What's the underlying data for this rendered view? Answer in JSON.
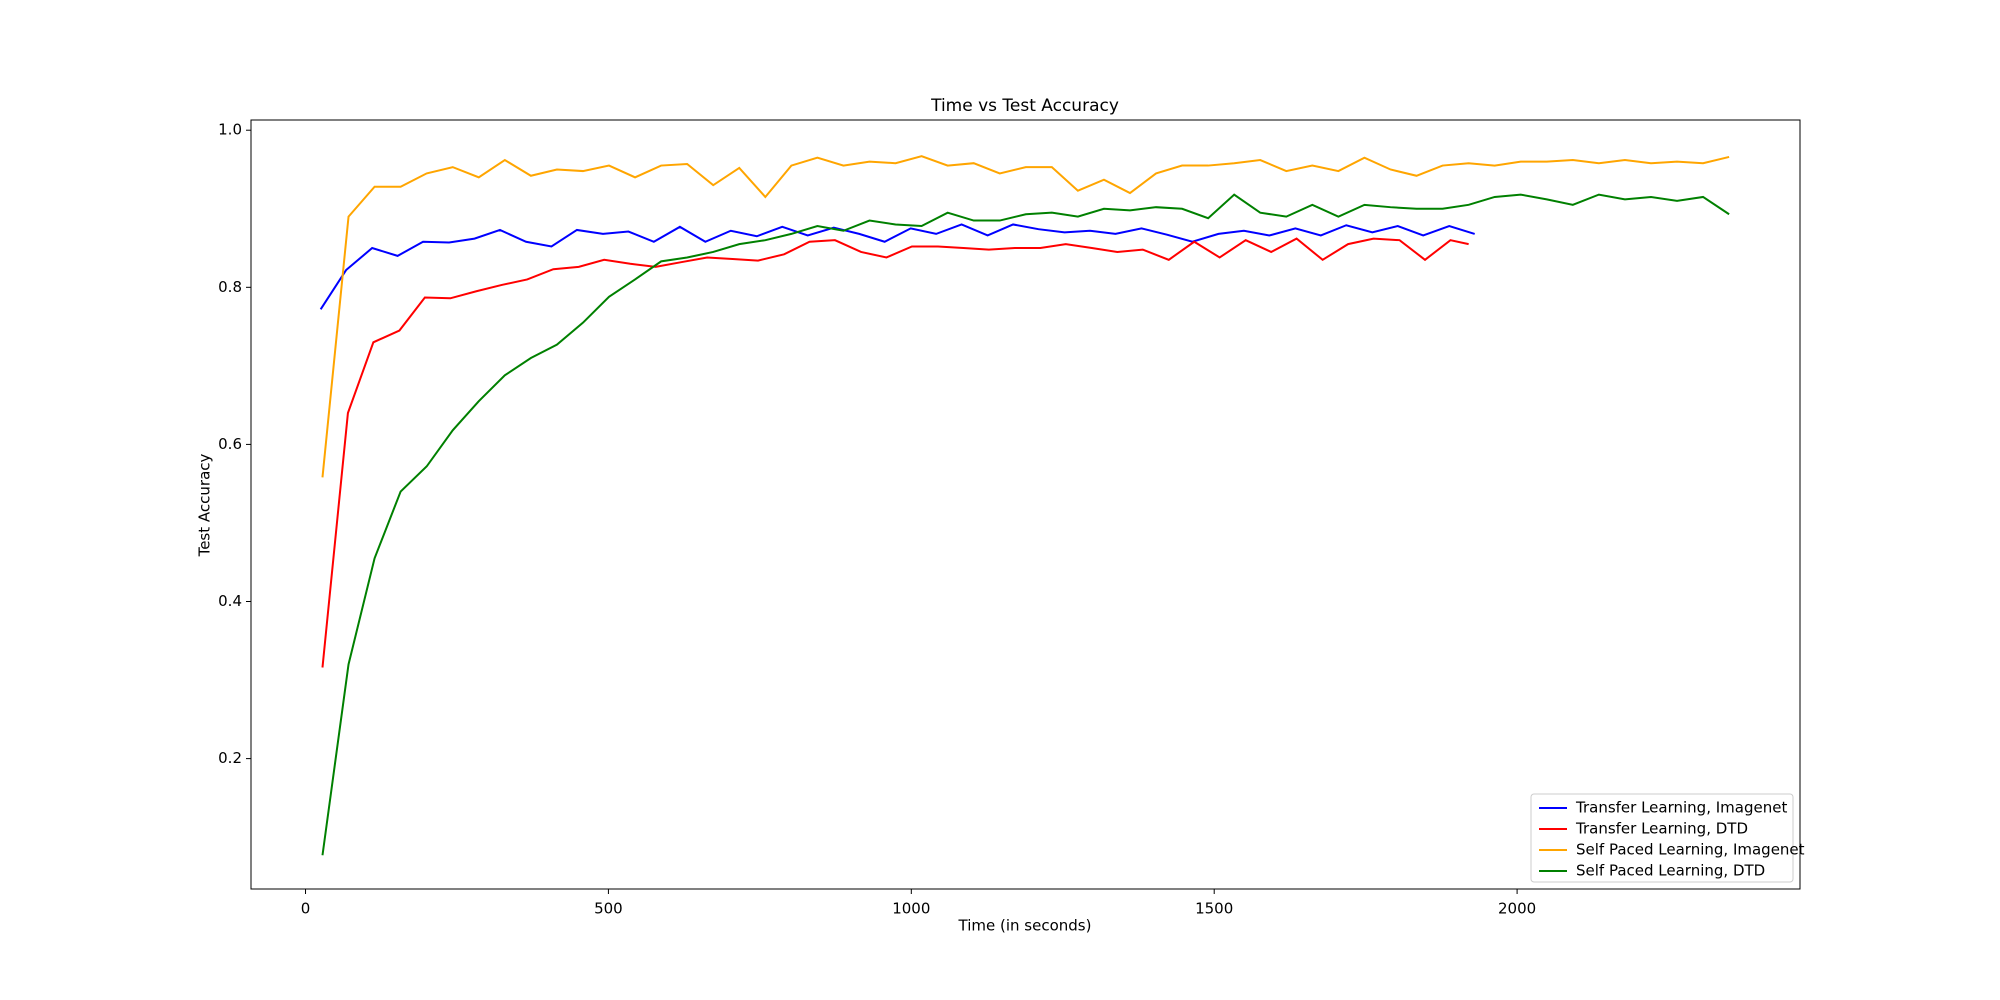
{
  "chart_data": {
    "type": "line",
    "title": "Time vs Test Accuracy",
    "xlabel": "Time (in seconds)",
    "ylabel": "Test Accuracy",
    "xlim": [
      -90,
      2467
    ],
    "ylim": [
      0.034,
      1.013
    ],
    "xticks": [
      0,
      500,
      1000,
      1500,
      2000
    ],
    "yticks": [
      0.2,
      0.4,
      0.6,
      0.8,
      {
        "value": 1,
        "label": "1.0"
      }
    ],
    "legend": "lower right",
    "series": [
      {
        "name": "Transfer Learning, Imagenet",
        "color": "#0000ff",
        "x": [
          25,
          67,
          110,
          152,
          194,
          237,
          279,
          321,
          364,
          406,
          448,
          491,
          533,
          575,
          618,
          660,
          702,
          745,
          787,
          829,
          872,
          914,
          956,
          999,
          1041,
          1083,
          1126,
          1168,
          1210,
          1253,
          1295,
          1337,
          1380,
          1422,
          1464,
          1507,
          1549,
          1591,
          1634,
          1676,
          1718,
          1761,
          1803,
          1845,
          1888,
          1930
        ],
        "values": [
          0.772,
          0.822,
          0.85,
          0.84,
          0.858,
          0.857,
          0.862,
          0.873,
          0.858,
          0.852,
          0.873,
          0.868,
          0.871,
          0.858,
          0.877,
          0.858,
          0.872,
          0.865,
          0.877,
          0.866,
          0.876,
          0.868,
          0.858,
          0.875,
          0.868,
          0.88,
          0.866,
          0.88,
          0.874,
          0.87,
          0.872,
          0.868,
          0.875,
          0.867,
          0.858,
          0.868,
          0.872,
          0.866,
          0.875,
          0.866,
          0.879,
          0.87,
          0.878,
          0.866,
          0.878,
          0.868
        ]
      },
      {
        "name": "Transfer Learning, DTD",
        "color": "#ff0000",
        "x": [
          28,
          70,
          112,
          155,
          197,
          239,
          282,
          324,
          366,
          409,
          451,
          493,
          536,
          578,
          620,
          663,
          705,
          747,
          790,
          832,
          874,
          917,
          959,
          1001,
          1044,
          1086,
          1128,
          1171,
          1213,
          1255,
          1298,
          1340,
          1382,
          1425,
          1467,
          1509,
          1552,
          1594,
          1636,
          1679,
          1721,
          1763,
          1806,
          1848,
          1890,
          1920
        ],
        "values": [
          0.316,
          0.64,
          0.73,
          0.745,
          0.787,
          0.786,
          0.795,
          0.803,
          0.81,
          0.823,
          0.826,
          0.835,
          0.83,
          0.826,
          0.832,
          0.838,
          0.836,
          0.834,
          0.842,
          0.858,
          0.86,
          0.845,
          0.838,
          0.852,
          0.852,
          0.85,
          0.848,
          0.85,
          0.85,
          0.855,
          0.85,
          0.845,
          0.848,
          0.835,
          0.858,
          0.838,
          0.86,
          0.845,
          0.862,
          0.835,
          0.855,
          0.862,
          0.86,
          0.835,
          0.86,
          0.855
        ]
      },
      {
        "name": "Self Paced Learning, Imagenet",
        "color": "#ffa500",
        "x": [
          28,
          71,
          114,
          157,
          200,
          243,
          286,
          329,
          372,
          415,
          458,
          501,
          544,
          587,
          630,
          673,
          716,
          759,
          802,
          845,
          888,
          931,
          974,
          1017,
          1060,
          1103,
          1146,
          1189,
          1232,
          1275,
          1318,
          1361,
          1404,
          1447,
          1490,
          1533,
          1576,
          1619,
          1662,
          1705,
          1748,
          1791,
          1834,
          1877,
          1920,
          1963,
          2006,
          2049,
          2092,
          2135,
          2178,
          2221,
          2264,
          2307,
          2350
        ],
        "values": [
          0.558,
          0.89,
          0.928,
          0.928,
          0.945,
          0.953,
          0.94,
          0.962,
          0.942,
          0.95,
          0.948,
          0.955,
          0.94,
          0.955,
          0.957,
          0.93,
          0.952,
          0.915,
          0.955,
          0.965,
          0.955,
          0.96,
          0.958,
          0.967,
          0.955,
          0.958,
          0.945,
          0.953,
          0.953,
          0.923,
          0.937,
          0.92,
          0.945,
          0.955,
          0.955,
          0.958,
          0.962,
          0.948,
          0.955,
          0.948,
          0.965,
          0.95,
          0.942,
          0.955,
          0.958,
          0.955,
          0.96,
          0.96,
          0.962,
          0.958,
          0.962,
          0.958,
          0.96,
          0.958,
          0.966
        ]
      },
      {
        "name": "Self Paced Learning, DTD",
        "color": "#008000",
        "x": [
          28,
          71,
          114,
          157,
          200,
          243,
          286,
          329,
          372,
          415,
          458,
          501,
          544,
          587,
          630,
          673,
          716,
          759,
          802,
          845,
          888,
          931,
          974,
          1017,
          1060,
          1103,
          1146,
          1189,
          1232,
          1275,
          1318,
          1361,
          1404,
          1447,
          1490,
          1533,
          1576,
          1619,
          1662,
          1705,
          1748,
          1791,
          1834,
          1877,
          1920,
          1963,
          2006,
          2049,
          2092,
          2135,
          2178,
          2221,
          2264,
          2307,
          2350
        ],
        "values": [
          0.077,
          0.32,
          0.455,
          0.54,
          0.572,
          0.618,
          0.655,
          0.688,
          0.71,
          0.727,
          0.755,
          0.788,
          0.81,
          0.833,
          0.838,
          0.845,
          0.855,
          0.86,
          0.868,
          0.878,
          0.872,
          0.885,
          0.88,
          0.878,
          0.895,
          0.885,
          0.885,
          0.893,
          0.895,
          0.89,
          0.9,
          0.898,
          0.902,
          0.9,
          0.888,
          0.918,
          0.895,
          0.89,
          0.905,
          0.89,
          0.905,
          0.902,
          0.9,
          0.9,
          0.905,
          0.915,
          0.918,
          0.912,
          0.905,
          0.918,
          0.912,
          0.915,
          0.91,
          0.915,
          0.893
        ]
      }
    ]
  }
}
